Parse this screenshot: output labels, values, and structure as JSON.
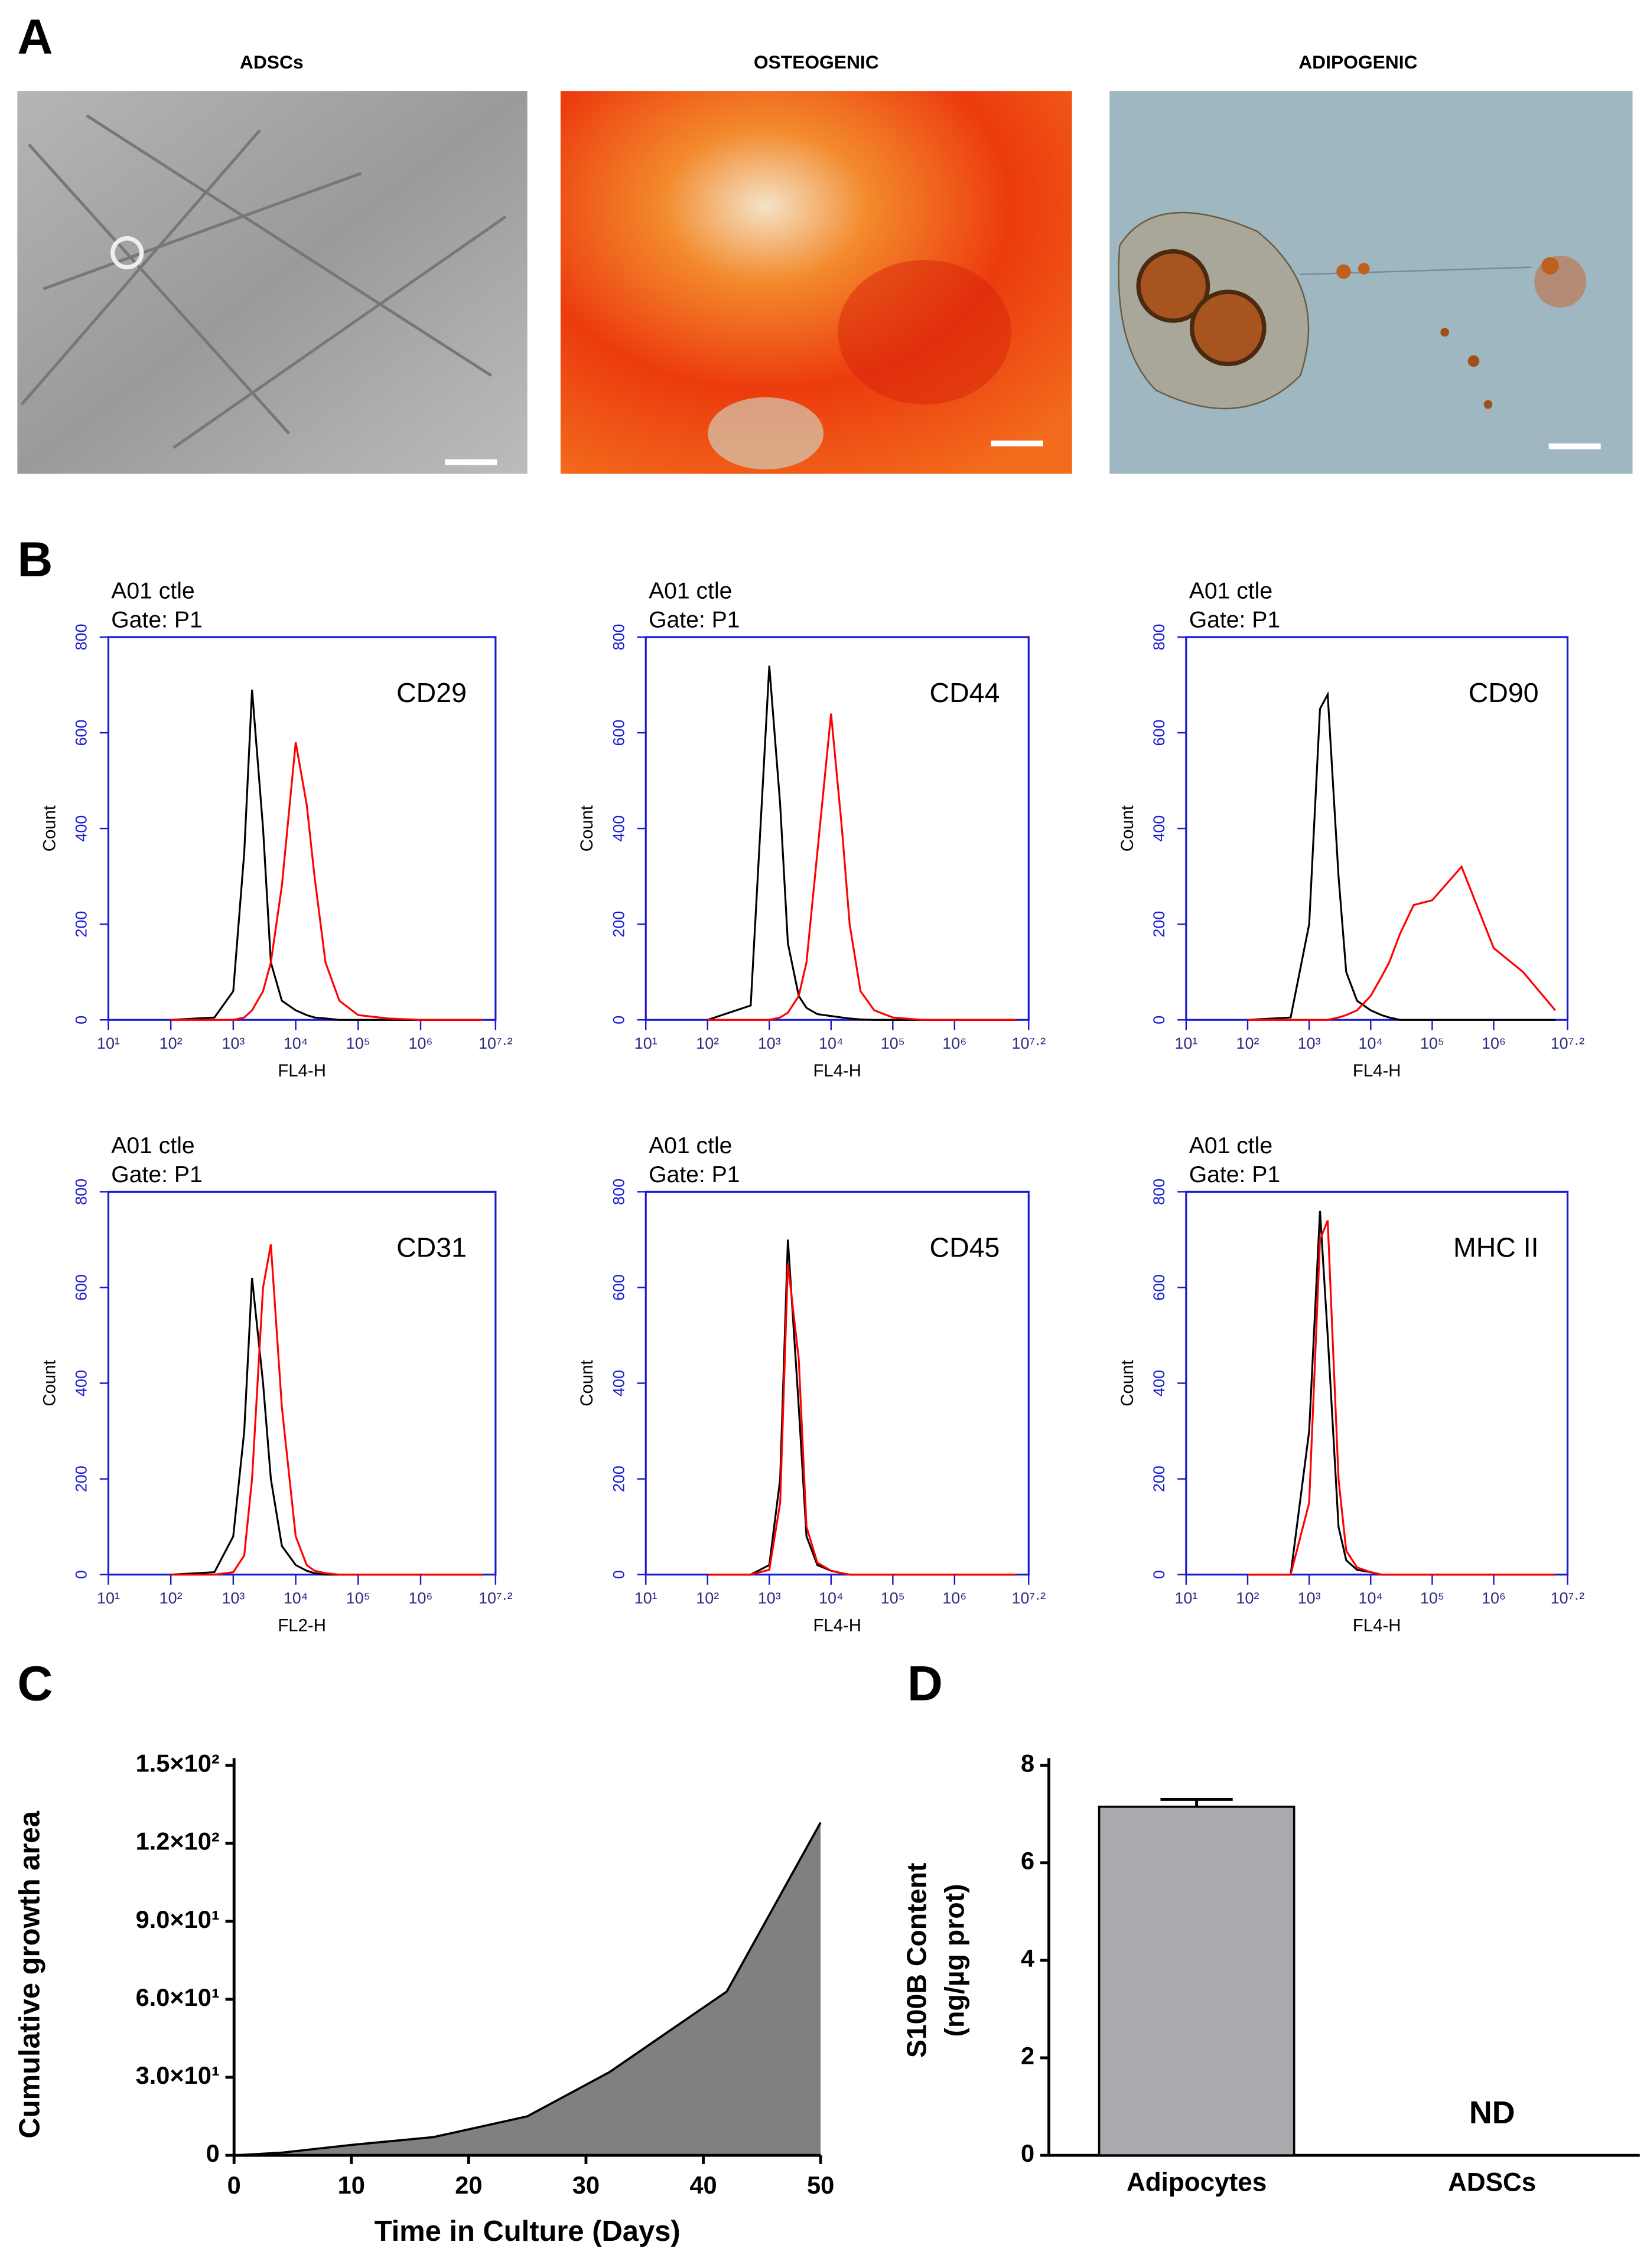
{
  "panel_labels": [
    "A",
    "B",
    "C",
    "D"
  ],
  "images": [
    {
      "title": "ADSCs"
    },
    {
      "title": "OSTEOGENIC"
    },
    {
      "title": "ADIPOGENIC"
    }
  ],
  "chart_data": [
    {
      "type": "line",
      "header": [
        "A01 ctle",
        "Gate: P1"
      ],
      "label": "CD29",
      "xlabel": "FL4-H",
      "ylabel": "Count",
      "log_x": true,
      "x": [
        100,
        500,
        1000,
        1500,
        2000,
        3000,
        4000,
        6000,
        10000,
        15000,
        20000,
        30000,
        50000,
        100000,
        300000,
        1000000,
        3000000,
        10000000
      ],
      "xlim": [
        10,
        15848932
      ],
      "xticks": [
        {
          "value": 10,
          "label": "10¹"
        },
        {
          "value": 100,
          "label": "10²"
        },
        {
          "value": 1000,
          "label": "10³"
        },
        {
          "value": 10000,
          "label": "10⁴"
        },
        {
          "value": 100000,
          "label": "10⁵"
        },
        {
          "value": 1000000,
          "label": "10⁶"
        },
        {
          "value": 15848932,
          "label": "10⁷·²"
        }
      ],
      "ylim": [
        0,
        800
      ],
      "yticks": [
        0,
        200,
        400,
        600,
        800
      ],
      "series": [
        {
          "color": "#000000",
          "values": [
            0,
            5,
            60,
            350,
            690,
            400,
            120,
            40,
            20,
            10,
            5,
            3,
            0,
            0,
            0,
            0,
            0,
            0
          ]
        },
        {
          "color": "#ff0000",
          "values": [
            0,
            0,
            0,
            5,
            20,
            60,
            120,
            280,
            580,
            450,
            300,
            120,
            40,
            10,
            3,
            0,
            0,
            0
          ]
        }
      ]
    },
    {
      "type": "line",
      "header": [
        "A01 ctle",
        "Gate: P1"
      ],
      "label": "CD44",
      "xlabel": "FL4-H",
      "ylabel": "Count",
      "log_x": true,
      "x": [
        100,
        500,
        1000,
        1500,
        2000,
        3000,
        4000,
        6000,
        10000,
        15000,
        20000,
        30000,
        50000,
        100000,
        300000,
        1000000,
        3000000,
        10000000
      ],
      "xlim": [
        10,
        15848932
      ],
      "xticks": [
        {
          "value": 10,
          "label": "10¹"
        },
        {
          "value": 100,
          "label": "10²"
        },
        {
          "value": 1000,
          "label": "10³"
        },
        {
          "value": 10000,
          "label": "10⁴"
        },
        {
          "value": 100000,
          "label": "10⁵"
        },
        {
          "value": 1000000,
          "label": "10⁶"
        },
        {
          "value": 15848932,
          "label": "10⁷·²"
        }
      ],
      "ylim": [
        0,
        800
      ],
      "yticks": [
        0,
        200,
        400,
        600,
        800
      ],
      "series": [
        {
          "color": "#000000",
          "values": [
            0,
            30,
            740,
            450,
            160,
            50,
            25,
            12,
            8,
            5,
            3,
            1,
            0,
            0,
            0,
            0,
            0,
            0
          ]
        },
        {
          "color": "#ff0000",
          "values": [
            0,
            0,
            0,
            5,
            15,
            50,
            120,
            350,
            640,
            400,
            200,
            60,
            20,
            5,
            0,
            0,
            0,
            0
          ]
        }
      ]
    },
    {
      "type": "line",
      "header": [
        "A01 ctle",
        "Gate: P1"
      ],
      "label": "CD90",
      "xlabel": "FL4-H",
      "ylabel": "Count",
      "log_x": true,
      "x": [
        100,
        500,
        1000,
        1500,
        2000,
        3000,
        4000,
        6000,
        10000,
        15000,
        20000,
        30000,
        50000,
        100000,
        300000,
        1000000,
        3000000,
        10000000
      ],
      "xlim": [
        10,
        15848932
      ],
      "xticks": [
        {
          "value": 10,
          "label": "10¹"
        },
        {
          "value": 100,
          "label": "10²"
        },
        {
          "value": 1000,
          "label": "10³"
        },
        {
          "value": 10000,
          "label": "10⁴"
        },
        {
          "value": 100000,
          "label": "10⁵"
        },
        {
          "value": 1000000,
          "label": "10⁶"
        },
        {
          "value": 15848932,
          "label": "10⁷·²"
        }
      ],
      "ylim": [
        0,
        800
      ],
      "yticks": [
        0,
        200,
        400,
        600,
        800
      ],
      "series": [
        {
          "color": "#000000",
          "values": [
            0,
            5,
            200,
            650,
            680,
            300,
            100,
            40,
            20,
            10,
            5,
            0,
            0,
            0,
            0,
            0,
            0,
            0
          ]
        },
        {
          "color": "#ff0000",
          "values": [
            0,
            0,
            0,
            0,
            0,
            5,
            10,
            20,
            50,
            90,
            120,
            180,
            240,
            250,
            320,
            150,
            100,
            20
          ]
        }
      ]
    },
    {
      "type": "line",
      "header": [
        "A01 ctle",
        "Gate: P1"
      ],
      "label": "CD31",
      "xlabel": "FL2-H",
      "ylabel": "Count",
      "log_x": true,
      "x": [
        100,
        500,
        1000,
        1500,
        2000,
        3000,
        4000,
        6000,
        10000,
        15000,
        20000,
        30000,
        50000,
        100000,
        300000,
        1000000,
        3000000,
        10000000
      ],
      "xlim": [
        10,
        15848932
      ],
      "xticks": [
        {
          "value": 10,
          "label": "10¹"
        },
        {
          "value": 100,
          "label": "10²"
        },
        {
          "value": 1000,
          "label": "10³"
        },
        {
          "value": 10000,
          "label": "10⁴"
        },
        {
          "value": 100000,
          "label": "10⁵"
        },
        {
          "value": 1000000,
          "label": "10⁶"
        },
        {
          "value": 15848932,
          "label": "10⁷·²"
        }
      ],
      "ylim": [
        0,
        800
      ],
      "yticks": [
        0,
        200,
        400,
        600,
        800
      ],
      "series": [
        {
          "color": "#000000",
          "values": [
            0,
            5,
            80,
            300,
            620,
            400,
            200,
            60,
            20,
            8,
            3,
            0,
            0,
            0,
            0,
            0,
            0,
            0
          ]
        },
        {
          "color": "#ff0000",
          "values": [
            0,
            0,
            5,
            40,
            200,
            600,
            690,
            350,
            80,
            20,
            8,
            3,
            0,
            0,
            0,
            0,
            0,
            0
          ]
        }
      ]
    },
    {
      "type": "line",
      "header": [
        "A01 ctle",
        "Gate: P1"
      ],
      "label": "CD45",
      "xlabel": "FL4-H",
      "ylabel": "Count",
      "log_x": true,
      "x": [
        100,
        500,
        1000,
        1500,
        2000,
        3000,
        4000,
        6000,
        10000,
        15000,
        20000,
        30000,
        50000,
        100000,
        300000,
        1000000,
        3000000,
        10000000
      ],
      "xlim": [
        10,
        15848932
      ],
      "xticks": [
        {
          "value": 10,
          "label": "10¹"
        },
        {
          "value": 100,
          "label": "10²"
        },
        {
          "value": 1000,
          "label": "10³"
        },
        {
          "value": 10000,
          "label": "10⁴"
        },
        {
          "value": 100000,
          "label": "10⁵"
        },
        {
          "value": 1000000,
          "label": "10⁶"
        },
        {
          "value": 15848932,
          "label": "10⁷·²"
        }
      ],
      "ylim": [
        0,
        800
      ],
      "yticks": [
        0,
        200,
        400,
        600,
        800
      ],
      "series": [
        {
          "color": "#000000",
          "values": [
            0,
            0,
            20,
            200,
            700,
            350,
            80,
            20,
            8,
            3,
            0,
            0,
            0,
            0,
            0,
            0,
            0,
            0
          ]
        },
        {
          "color": "#ff0000",
          "values": [
            0,
            0,
            10,
            150,
            650,
            450,
            100,
            25,
            8,
            3,
            0,
            0,
            0,
            0,
            0,
            0,
            0,
            0
          ]
        }
      ]
    },
    {
      "type": "line",
      "header": [
        "A01 ctle",
        "Gate: P1"
      ],
      "label": "MHC II",
      "xlabel": "FL4-H",
      "ylabel": "Count",
      "log_x": true,
      "x": [
        100,
        500,
        1000,
        1500,
        2000,
        3000,
        4000,
        6000,
        10000,
        15000,
        20000,
        30000,
        50000,
        100000,
        300000,
        1000000,
        3000000,
        10000000
      ],
      "xlim": [
        10,
        15848932
      ],
      "xticks": [
        {
          "value": 10,
          "label": "10¹"
        },
        {
          "value": 100,
          "label": "10²"
        },
        {
          "value": 1000,
          "label": "10³"
        },
        {
          "value": 10000,
          "label": "10⁴"
        },
        {
          "value": 100000,
          "label": "10⁵"
        },
        {
          "value": 1000000,
          "label": "10⁶"
        },
        {
          "value": 15848932,
          "label": "10⁷·²"
        }
      ],
      "ylim": [
        0,
        800
      ],
      "yticks": [
        0,
        200,
        400,
        600,
        800
      ],
      "series": [
        {
          "color": "#000000",
          "values": [
            0,
            0,
            300,
            760,
            500,
            100,
            30,
            10,
            5,
            0,
            0,
            0,
            0,
            0,
            0,
            0,
            0,
            0
          ]
        },
        {
          "color": "#ff0000",
          "values": [
            0,
            0,
            150,
            700,
            740,
            200,
            50,
            15,
            5,
            0,
            0,
            0,
            0,
            0,
            0,
            0,
            0,
            0
          ]
        }
      ]
    },
    {
      "type": "area",
      "xlabel": "Time in Culture (Days)",
      "ylabel": "Cumulative growth area",
      "x": [
        0,
        4,
        10,
        17,
        25,
        32,
        42,
        50
      ],
      "values": [
        0,
        1,
        4,
        7,
        15,
        32,
        63,
        128
      ],
      "color": "#808080",
      "xlim": [
        0,
        50
      ],
      "xticks": [
        0,
        10,
        20,
        30,
        40,
        50
      ],
      "ylim": [
        0,
        150
      ],
      "yticks": [
        0,
        {
          "value": 30,
          "label": "3.0×10¹"
        },
        {
          "value": 60,
          "label": "6.0×10¹"
        },
        {
          "value": 90,
          "label": "9.0×10¹"
        },
        {
          "value": 120,
          "label": "1.2×10²"
        },
        {
          "value": 150,
          "label": "1.5×10²"
        }
      ]
    },
    {
      "type": "bar",
      "ylabel": [
        "S100B Content",
        "(ng/µg prot)"
      ],
      "categories": [
        "Adipocytes",
        "ADSCs"
      ],
      "values": [
        7.15,
        null
      ],
      "errors": [
        0.15,
        null
      ],
      "value_labels": [
        null,
        "ND"
      ],
      "color": "#a9a9ae",
      "ylim": [
        0,
        8
      ],
      "yticks": [
        0,
        2,
        4,
        6,
        8
      ]
    }
  ]
}
